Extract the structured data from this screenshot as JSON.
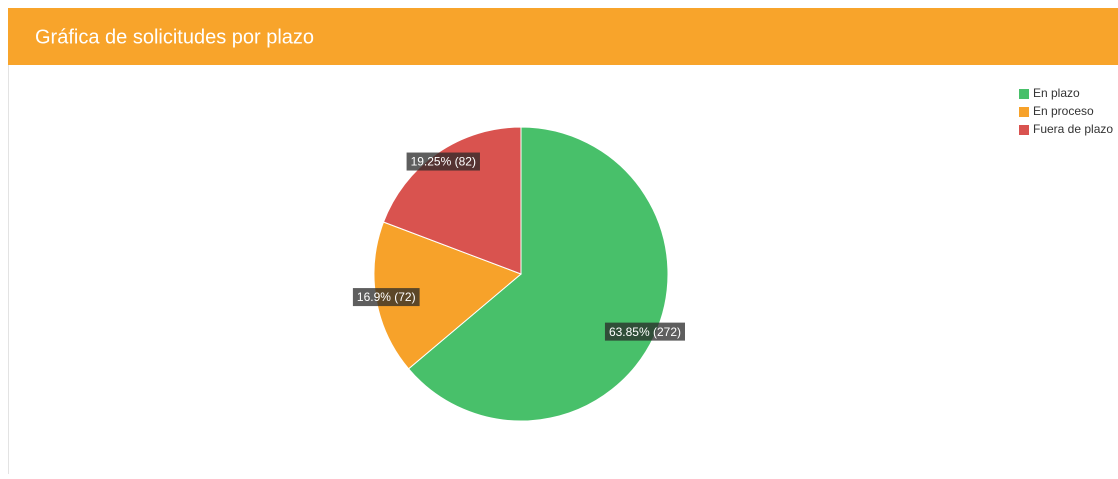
{
  "chart_data": {
    "type": "pie",
    "title": "Gráfica de solicitudes por plazo",
    "categories": [
      "En plazo",
      "En proceso",
      "Fuera de plazo"
    ],
    "values": [
      272,
      72,
      82
    ],
    "value_labels": [
      "63.85% (272)",
      "16.9% (72)",
      "19.25% (82)"
    ],
    "colors": [
      "#48c06a",
      "#f7a22a",
      "#d9534f"
    ],
    "legend": "top-right"
  }
}
